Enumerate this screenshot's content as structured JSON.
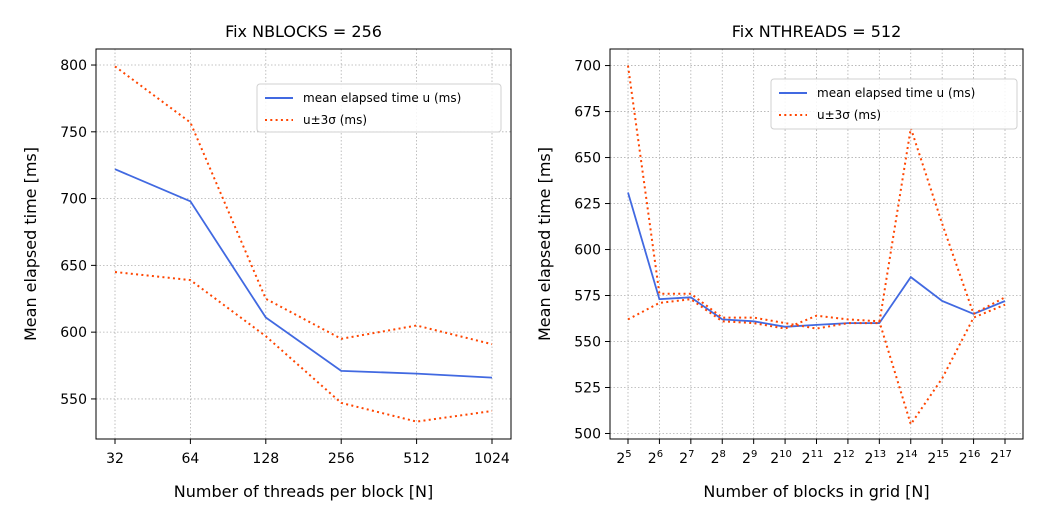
{
  "chart_data": [
    {
      "type": "line",
      "title": "Fix NBLOCKS = 256",
      "xlabel": "Number of threads per block [N]",
      "ylabel": "Mean elapsed time [ms]",
      "x_scale": "log2",
      "categories": [
        "32",
        "64",
        "128",
        "256",
        "512",
        "1024"
      ],
      "x": [
        32,
        64,
        128,
        256,
        512,
        1024
      ],
      "ylim": [
        520,
        812
      ],
      "yticks": [
        550,
        600,
        650,
        700,
        750,
        800
      ],
      "grid": true,
      "legend_position": "top-right",
      "series": [
        {
          "name": "mean elapsed time u (ms)",
          "style": "solid",
          "color": "#4169e1",
          "values": [
            722,
            698,
            611,
            571,
            569,
            566
          ]
        },
        {
          "name": "u±3σ (ms)",
          "style": "dotted",
          "color": "#ff4500",
          "values": [
            799,
            757,
            625,
            595,
            605,
            591
          ]
        },
        {
          "name": "",
          "style": "dotted",
          "color": "#ff4500",
          "values": [
            645,
            639,
            597,
            547,
            533,
            541
          ]
        }
      ]
    },
    {
      "type": "line",
      "title": "Fix NTHREADS = 512",
      "xlabel": "Number of blocks in grid [N]",
      "ylabel": "Mean elapsed time [ms]",
      "x_scale": "log2",
      "categories": [
        {
          "base": "2",
          "exp": "5"
        },
        {
          "base": "2",
          "exp": "6"
        },
        {
          "base": "2",
          "exp": "7"
        },
        {
          "base": "2",
          "exp": "8"
        },
        {
          "base": "2",
          "exp": "9"
        },
        {
          "base": "2",
          "exp": "10"
        },
        {
          "base": "2",
          "exp": "11"
        },
        {
          "base": "2",
          "exp": "12"
        },
        {
          "base": "2",
          "exp": "13"
        },
        {
          "base": "2",
          "exp": "14"
        },
        {
          "base": "2",
          "exp": "15"
        },
        {
          "base": "2",
          "exp": "16"
        },
        {
          "base": "2",
          "exp": "17"
        }
      ],
      "x": [
        32,
        64,
        128,
        256,
        512,
        1024,
        2048,
        4096,
        8192,
        16384,
        32768,
        65536,
        131072
      ],
      "ylim": [
        497,
        709
      ],
      "yticks": [
        500,
        525,
        550,
        575,
        600,
        625,
        650,
        675,
        700
      ],
      "grid": true,
      "legend_position": "top-right",
      "series": [
        {
          "name": "mean elapsed time u (ms)",
          "style": "solid",
          "color": "#4169e1",
          "values": [
            631,
            573,
            574,
            562,
            561,
            558,
            559,
            560,
            560,
            585,
            572,
            565,
            572
          ]
        },
        {
          "name": "u±3σ (ms)",
          "style": "dotted",
          "color": "#ff4500",
          "values": [
            700,
            576,
            576,
            563,
            563,
            560,
            557,
            560,
            560,
            666,
            614,
            565,
            574
          ]
        },
        {
          "name": "",
          "style": "dotted",
          "color": "#ff4500",
          "values": [
            562,
            571,
            573,
            561,
            560,
            557,
            564,
            562,
            561,
            505,
            530,
            563,
            570
          ]
        }
      ]
    }
  ]
}
